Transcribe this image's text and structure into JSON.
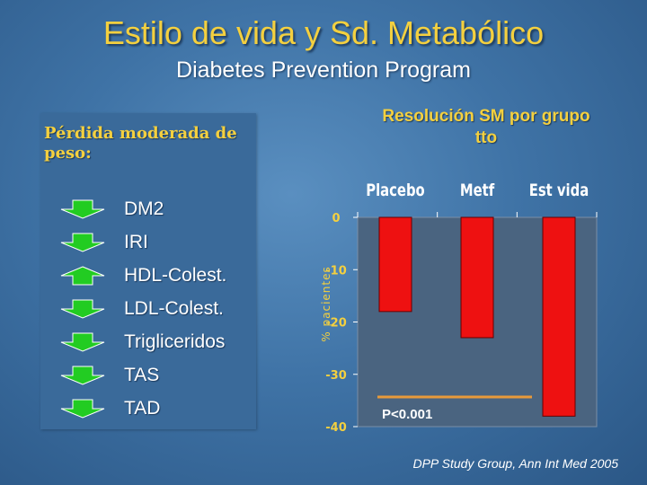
{
  "slide": {
    "title": "Estilo de vida y Sd. Metabólico",
    "subtitle": "Diabetes Prevention Program",
    "left_heading": "Pérdida moderada de peso:",
    "credit": "DPP Study Group, Ann Int Med 2005"
  },
  "effects": [
    {
      "label": "DM2",
      "direction": "down"
    },
    {
      "label": "IRI",
      "direction": "down"
    },
    {
      "label": "HDL-Colest.",
      "direction": "up"
    },
    {
      "label": "LDL-Colest.",
      "direction": "down"
    },
    {
      "label": "Trigliceridos",
      "direction": "down"
    },
    {
      "label": "TAS",
      "direction": "down"
    },
    {
      "label": "TAD",
      "direction": "down"
    }
  ],
  "colors": {
    "bar": "#ee1111",
    "plot_bg": "#4a6480",
    "arrow": "#22cc22",
    "accent": "#f4d03f",
    "pvalue_line": "#e89a3a"
  },
  "chart_data": {
    "type": "bar",
    "title": "Resolución SM por grupo tto",
    "categories": [
      "Placebo",
      "Metf",
      "Est vida"
    ],
    "values": [
      -18,
      -23,
      -38
    ],
    "ylabel": "% pacientes",
    "xlabel": "",
    "ylim": [
      -40,
      0
    ],
    "yticks": [
      0,
      -10,
      -20,
      -30,
      -40
    ],
    "ytick_labels": [
      "0",
      "-10",
      "-20",
      "-30",
      "-40"
    ],
    "annotation": "P<0.001",
    "grid": false
  }
}
